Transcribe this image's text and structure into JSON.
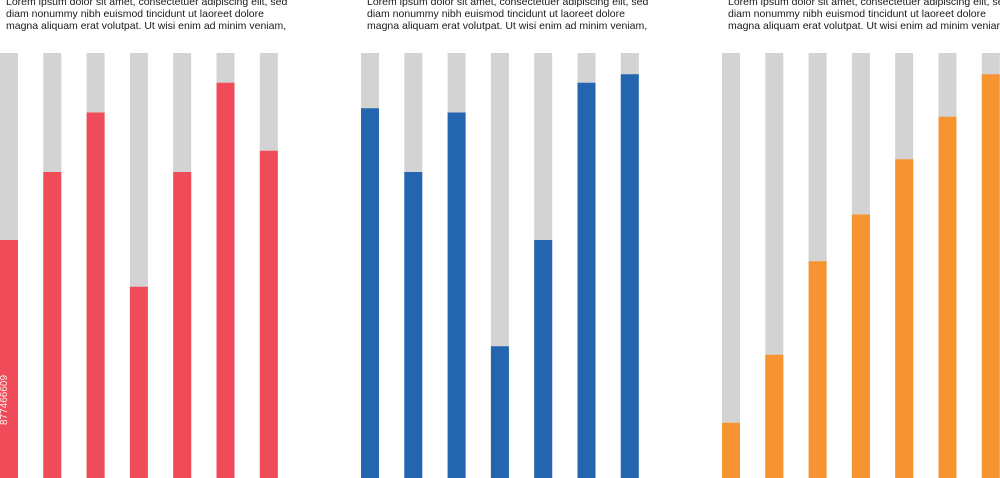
{
  "colors": {
    "track": "#d3d3d3",
    "panel_1": "#f04b58",
    "panel_2": "#2365ae",
    "panel_3": "#f79432"
  },
  "watermark_text": "877466609",
  "chart_data": [
    {
      "type": "bar",
      "text": "Lorem ipsum dolor sit amet, consectetuer adipiscing elit, sed diam nonummy nibh euismod tincidunt ut laoreet dolore magna aliquam erat volutpat. Ut wisi enim ad minim veniam,",
      "color": "#f04b58",
      "ylim": [
        0,
        100
      ],
      "values": [
        56,
        72,
        86,
        45,
        72,
        93,
        77
      ]
    },
    {
      "type": "bar",
      "text": "Lorem ipsum dolor sit amet, consectetuer adipiscing elit, sed diam nonummy nibh euismod tincidunt ut laoreet dolore magna aliquam erat volutpat. Ut wisi enim ad minim veniam,",
      "color": "#2365ae",
      "ylim": [
        0,
        100
      ],
      "values": [
        87,
        72,
        86,
        31,
        56,
        93,
        95
      ]
    },
    {
      "type": "bar",
      "text": "Lorem ipsum dolor sit amet, consectetuer adipiscing elit, sed diam nonummy nibh euismod tincidunt ut laoreet dolore magna aliquam erat volutpat. Ut wisi enim ad minim veniam,",
      "color": "#f79432",
      "ylim": [
        0,
        100
      ],
      "values": [
        13,
        29,
        51,
        62,
        75,
        85,
        95
      ]
    }
  ]
}
